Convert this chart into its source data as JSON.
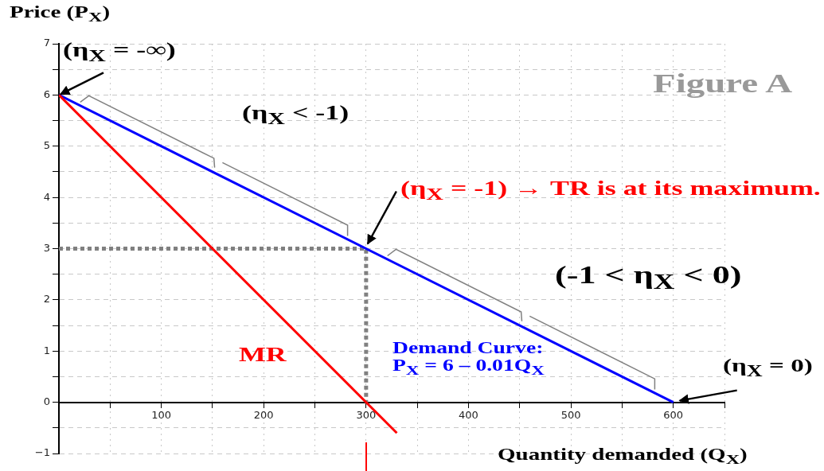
{
  "chart_data": {
    "type": "line",
    "title": "Figure A",
    "xlabel": "Quantity demanded (Q$_{X}$)",
    "ylabel": "Price (P$_{X}$)",
    "xlim": [
      0,
      650
    ],
    "xticks": [
      {
        "value": 50,
        "label": null
      },
      100,
      {
        "value": 150,
        "label": null
      },
      200,
      {
        "value": 250,
        "label": null
      },
      300,
      {
        "value": 350,
        "label": null
      },
      400,
      {
        "value": 450,
        "label": null
      },
      500,
      {
        "value": 550,
        "label": null
      },
      600,
      {
        "value": 650,
        "label": null
      }
    ],
    "ylim": [
      -1,
      7
    ],
    "yticks": [
      {
        "value": -1,
        "label": "−1"
      },
      {
        "value": -0.5,
        "label": null
      },
      0,
      {
        "value": 0.5,
        "label": null
      },
      1,
      {
        "value": 1.5,
        "label": null
      },
      2,
      {
        "value": 2.5,
        "label": null
      },
      3,
      {
        "value": 3.5,
        "label": null
      },
      4,
      {
        "value": 4.5,
        "label": null
      },
      5,
      {
        "value": 5.5,
        "label": null
      },
      6,
      {
        "value": 6.5,
        "label": null
      },
      7
    ],
    "grid": true,
    "marker": "none",
    "series": [
      {
        "name": "MR",
        "color": "#ff0000",
        "x": [
          0,
          330
        ],
        "values": [
          6,
          -0.6
        ]
      },
      {
        "name": "Demand Curve: P$_{X}$ = 6 – 0.01Q$_{X}$",
        "color": "#0000ff",
        "x": [
          0,
          600
        ],
        "values": [
          6,
          0
        ]
      },
      {
        "color": "#808080",
        "line_style": "dotted",
        "x": [
          0,
          300,
          300
        ],
        "values": [
          3,
          3,
          0
        ]
      }
    ],
    "annotations": [
      {
        "text": "(η$_{X}$ = -∞)",
        "x": 0,
        "y": 6
      },
      {
        "text": "(η$_{X}$ < -1)",
        "x": 150,
        "y": 4.5
      },
      {
        "text": "(η$_{X}$ = -1) → TR is at its maximum.",
        "x": 300,
        "y": 3
      },
      {
        "text": "(-1 < η$_{X}$ < 0)",
        "x": 450,
        "y": 1.5
      },
      {
        "text": "(η$_{X}$ = 0)",
        "x": 600,
        "y": 0
      }
    ]
  }
}
